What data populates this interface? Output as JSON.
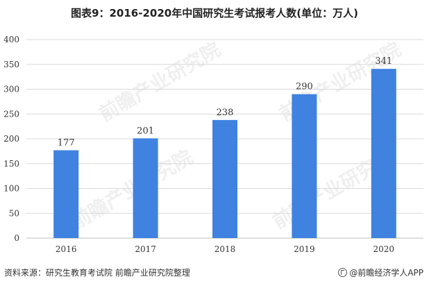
{
  "title": "图表9：2016-2020年中国研究生考试报考人数(单位：万人)",
  "source": "资料来源：研究生教育考试院 前瞻产业研究院整理",
  "brand": "@前瞻经济学人APP",
  "watermark": "前瞻产业研究院",
  "colors": {
    "bar": "#3F82E0",
    "axis": "#BFBFBF",
    "grid": "#D9D9D9"
  },
  "chart_data": {
    "type": "bar",
    "categories": [
      "2016",
      "2017",
      "2018",
      "2019",
      "2020"
    ],
    "values": [
      177,
      201,
      238,
      290,
      341
    ],
    "title": "图表9：2016-2020年中国研究生考试报考人数(单位：万人)",
    "ylim": [
      0,
      400
    ],
    "yticks": [
      0,
      50,
      100,
      150,
      200,
      250,
      300,
      350,
      400
    ],
    "grid": true,
    "legend": "none"
  }
}
